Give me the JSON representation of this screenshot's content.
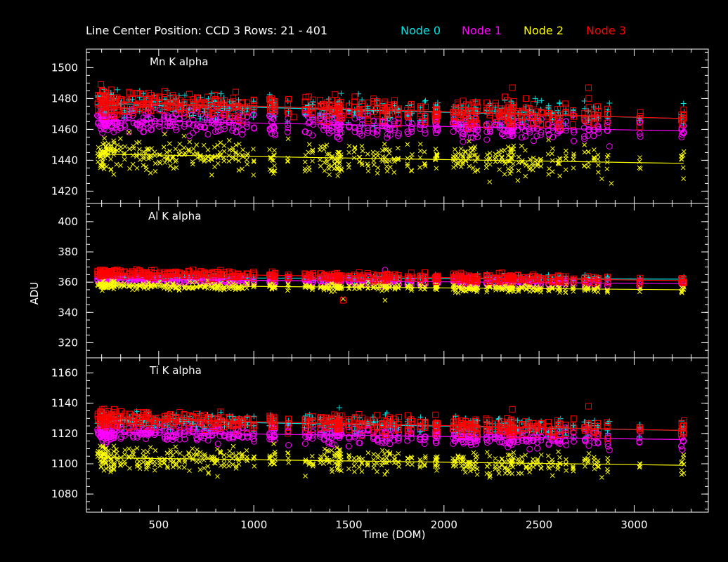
{
  "header": {
    "title": "Line Center Position: CCD 3 Rows: 21 - 401",
    "legend": [
      {
        "name": "Node 0",
        "color": "#00e5e5"
      },
      {
        "name": "Node 1",
        "color": "#ff00ff"
      },
      {
        "name": "Node 2",
        "color": "#ffff00"
      },
      {
        "name": "Node 3",
        "color": "#ff0000"
      }
    ]
  },
  "chart_data": {
    "type": "scatter",
    "xlabel": "Time (DOM)",
    "ylabel": "ADU",
    "xlim": [
      120,
      3390
    ],
    "x_ticks": [
      500,
      1000,
      1500,
      2000,
      2500,
      3000
    ],
    "grid": false,
    "legend_placement": "top",
    "panels": [
      {
        "label": "Mn K alpha",
        "ylim": [
          1412,
          1512
        ],
        "y_ticks": [
          1420,
          1440,
          1460,
          1480,
          1500
        ],
        "series": [
          {
            "name": "Node 0",
            "marker": "plus",
            "fit": [
              [
                180,
                1477
              ],
              [
                3260,
                1467
              ]
            ],
            "scatter_sd": 4,
            "outliers": [
              [
                1550,
                1483
              ],
              [
                2870,
                1477
              ],
              [
                2480,
                1480
              ]
            ]
          },
          {
            "name": "Node 1",
            "marker": "circle",
            "fit": [
              [
                180,
                1466
              ],
              [
                3260,
                1459
              ]
            ],
            "scatter_sd": 4,
            "outliers": [
              [
                2870,
                1449
              ],
              [
                2100,
                1452
              ]
            ]
          },
          {
            "name": "Node 2",
            "marker": "cross",
            "fit": [
              [
                180,
                1444
              ],
              [
                3260,
                1438
              ]
            ],
            "scatter_sd": 5,
            "outliers": [
              [
                2240,
                1426
              ],
              [
                2830,
                1428
              ],
              [
                2880,
                1425
              ]
            ]
          },
          {
            "name": "Node 3",
            "marker": "square",
            "fit": [
              [
                180,
                1478
              ],
              [
                3260,
                1467
              ]
            ],
            "scatter_sd": 4,
            "outliers": [
              [
                2760,
                1487
              ],
              [
                2360,
                1487
              ],
              [
                1210,
                1468
              ]
            ]
          }
        ]
      },
      {
        "label": "Al K alpha",
        "ylim": [
          310,
          412
        ],
        "y_ticks": [
          320,
          340,
          360,
          380,
          400
        ],
        "series": [
          {
            "name": "Node 0",
            "marker": "plus",
            "fit": [
              [
                180,
                363
              ],
              [
                3260,
                362
              ]
            ],
            "scatter_sd": 1.2,
            "outliers": []
          },
          {
            "name": "Node 1",
            "marker": "circle",
            "fit": [
              [
                180,
                362
              ],
              [
                3260,
                359
              ]
            ],
            "scatter_sd": 1.3,
            "outliers": [
              [
                1690,
                368
              ]
            ]
          },
          {
            "name": "Node 2",
            "marker": "cross",
            "fit": [
              [
                180,
                358
              ],
              [
                3260,
                355
              ]
            ],
            "scatter_sd": 1.3,
            "outliers": [
              [
                1690,
                348
              ],
              [
                1470,
                349
              ]
            ]
          },
          {
            "name": "Node 3",
            "marker": "square",
            "fit": [
              [
                180,
                366
              ],
              [
                3260,
                361
              ]
            ],
            "scatter_sd": 1.3,
            "outliers": [
              [
                1470,
                348
              ]
            ]
          }
        ]
      },
      {
        "label": "Ti K alpha",
        "ylim": [
          1068,
          1170
        ],
        "y_ticks": [
          1080,
          1100,
          1120,
          1140,
          1160
        ],
        "series": [
          {
            "name": "Node 0",
            "marker": "plus",
            "fit": [
              [
                180,
                1129
              ],
              [
                3260,
                1122
              ]
            ],
            "scatter_sd": 3,
            "outliers": [
              [
                2870,
                1128
              ],
              [
                1450,
                1137
              ]
            ]
          },
          {
            "name": "Node 1",
            "marker": "circle",
            "fit": [
              [
                180,
                1121
              ],
              [
                3260,
                1116
              ]
            ],
            "scatter_sd": 3,
            "outliers": [
              [
                2870,
                1109
              ]
            ]
          },
          {
            "name": "Node 2",
            "marker": "cross",
            "fit": [
              [
                180,
                1104
              ],
              [
                3260,
                1099
              ]
            ],
            "scatter_sd": 4,
            "outliers": [
              [
                2240,
                1091
              ],
              [
                2830,
                1091
              ]
            ]
          },
          {
            "name": "Node 3",
            "marker": "square",
            "fit": [
              [
                180,
                1130
              ],
              [
                3260,
                1122
              ]
            ],
            "scatter_sd": 3,
            "outliers": [
              [
                2760,
                1138
              ],
              [
                2360,
                1136
              ]
            ]
          }
        ]
      }
    ],
    "observation_days": [
      180,
      195,
      205,
      215,
      225,
      235,
      250,
      265,
      280,
      300,
      320,
      345,
      365,
      385,
      400,
      420,
      435,
      445,
      460,
      480,
      505,
      530,
      545,
      560,
      575,
      590,
      610,
      635,
      660,
      680,
      700,
      720,
      740,
      760,
      780,
      795,
      810,
      825,
      845,
      870,
      890,
      905,
      920,
      940,
      965,
      1000,
      1085,
      1095,
      1105,
      1110,
      1180,
      1270,
      1290,
      1310,
      1350,
      1370,
      1385,
      1395,
      1410,
      1425,
      1440,
      1450,
      1460,
      1500,
      1530,
      1555,
      1570,
      1600,
      1630,
      1650,
      1675,
      1690,
      1700,
      1715,
      1740,
      1760,
      1810,
      1830,
      1875,
      1900,
      1955,
      1960,
      1965,
      2050,
      2060,
      2075,
      2090,
      2100,
      2115,
      2130,
      2140,
      2155,
      2165,
      2175,
      2225,
      2240,
      2270,
      2290,
      2305,
      2320,
      2335,
      2345,
      2355,
      2365,
      2390,
      2410,
      2430,
      2450,
      2470,
      2490,
      2510,
      2550,
      2570,
      2600,
      2610,
      2640,
      2680,
      2740,
      2760,
      2790,
      2810,
      2860,
      3030,
      3250,
      3260
    ],
    "dense_days": [
      195,
      205,
      215,
      225,
      250,
      265,
      430,
      440,
      1430,
      1440,
      1450,
      2330,
      2340,
      2350,
      2355
    ]
  }
}
